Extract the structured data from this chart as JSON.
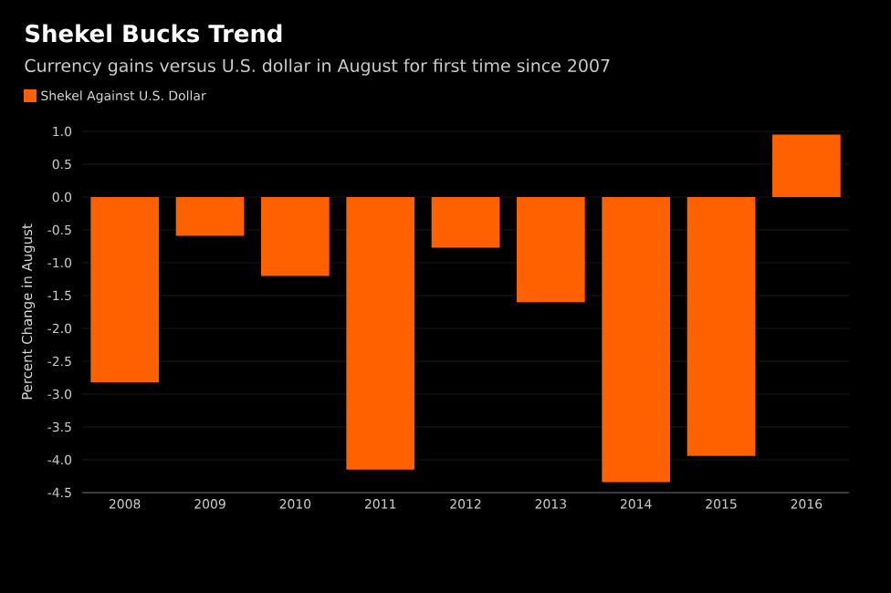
{
  "chart_data": {
    "type": "bar",
    "title": "Shekel Bucks Trend",
    "subtitle": "Currency gains versus U.S. dollar in August for first time since 2007",
    "ylabel": "Percent Change in August",
    "categories": [
      "2008",
      "2009",
      "2010",
      "2011",
      "2012",
      "2013",
      "2014",
      "2015",
      "2016"
    ],
    "series": [
      {
        "name": "Shekel Against U.S. Dollar",
        "color": "#ff6000",
        "values": [
          -2.82,
          -0.59,
          -1.2,
          -4.15,
          -0.77,
          -1.6,
          -4.34,
          -3.94,
          0.95
        ]
      }
    ],
    "ylim": [
      -4.5,
      1.0
    ],
    "yticks": [
      {
        "value": 1.0,
        "label": "1.0"
      },
      {
        "value": 0.5,
        "label": "0.5"
      },
      {
        "value": 0.0,
        "label": "0.0"
      },
      {
        "value": -0.5,
        "label": "-0.5"
      },
      {
        "value": -1.0,
        "label": "-1.0"
      },
      {
        "value": -1.5,
        "label": "-1.5"
      },
      {
        "value": -2.0,
        "label": "-2.0"
      },
      {
        "value": -2.5,
        "label": "-2.5"
      },
      {
        "value": -3.0,
        "label": "-3.0"
      },
      {
        "value": -3.5,
        "label": "-3.5"
      },
      {
        "value": -4.0,
        "label": "-4.0"
      },
      {
        "value": -4.5,
        "label": "-4.5"
      }
    ],
    "grid": "y",
    "legend": "top left"
  }
}
